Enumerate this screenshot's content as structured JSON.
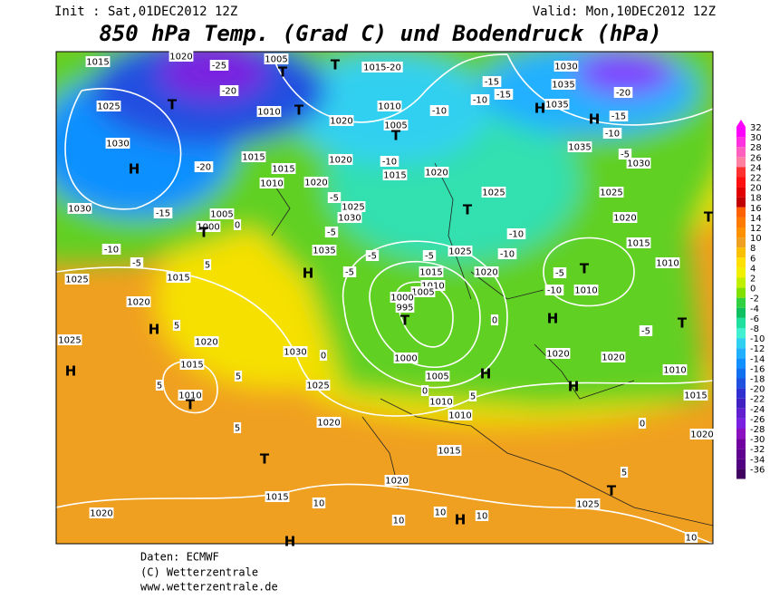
{
  "header": {
    "init": "Init : Sat,01DEC2012 12Z",
    "valid": "Valid: Mon,10DEC2012 12Z",
    "title": "850 hPa Temp. (Grad C) und Bodendruck (hPa)"
  },
  "colorbar": {
    "values": [
      32,
      30,
      28,
      26,
      24,
      22,
      20,
      18,
      16,
      14,
      12,
      10,
      8,
      6,
      4,
      2,
      0,
      -2,
      -4,
      -6,
      -8,
      -10,
      -12,
      -14,
      -16,
      -18,
      -20,
      -22,
      -24,
      -26,
      -28,
      -30,
      -32,
      -34,
      -36
    ],
    "colors": [
      "#ff00ff",
      "#ff30e0",
      "#ff60c0",
      "#ff80a0",
      "#ff3030",
      "#ff1010",
      "#e00000",
      "#c00000",
      "#ff6000",
      "#ff7a00",
      "#ff9000",
      "#f0a020",
      "#f8c000",
      "#ffe000",
      "#f0f000",
      "#c0f000",
      "#80e000",
      "#30d040",
      "#10c060",
      "#20e0a0",
      "#40f0d0",
      "#30d0f0",
      "#20b0ff",
      "#1090ff",
      "#1070f0",
      "#2050e0",
      "#3030d0",
      "#4020c0",
      "#6020d0",
      "#7a20e0",
      "#8a10c0",
      "#7000a0",
      "#600090",
      "#500080",
      "#400060"
    ]
  },
  "map": {
    "labels": [
      "1015",
      "1020",
      "-25",
      "1005",
      "T",
      "T",
      "1015-20",
      "1030",
      "-20",
      "1035",
      "-15",
      "-15",
      "-10",
      "1025",
      "T",
      "-20",
      "1010",
      "T",
      "1010",
      "-10",
      "H",
      "1035",
      "H",
      "-15",
      "-10",
      "1020",
      "1005",
      "T",
      "1030",
      "H",
      "-20",
      "1015",
      "1020",
      "-10",
      "1020",
      "1035",
      "-5",
      "1030",
      "1015",
      "1015",
      "1020",
      "1010",
      "-5",
      "1025",
      "1025",
      "T",
      "1030",
      "-15",
      "1005",
      "1025",
      "1030",
      "1020",
      "T",
      "1000",
      "T",
      "0",
      "-5",
      "-10",
      "1015",
      "-10",
      "-5",
      "1025",
      "-10",
      "-5",
      "1035",
      "-5",
      "T",
      "-5",
      "1010",
      "1025",
      "1015",
      "5",
      "H",
      "-5",
      "1015",
      "1020",
      "1010",
      "1005",
      "-10",
      "1010",
      "1020",
      "1000",
      "995",
      "T",
      "0",
      "H",
      "-5",
      "T",
      "H",
      "5",
      "1025",
      "1020",
      "1030",
      "0",
      "1000",
      "1020",
      "1020",
      "H",
      "1015",
      "5",
      "5",
      "1010",
      "T",
      "1025",
      "1005",
      "H",
      "1010",
      "H",
      "0",
      "1010",
      "5",
      "1015",
      "1020",
      "5",
      "1010",
      "0",
      "1020",
      "T",
      "1015",
      "5",
      "1020",
      "T",
      "1015",
      "10",
      "1025",
      "1020",
      "10",
      "10",
      "H",
      "10",
      "H",
      "10"
    ]
  },
  "footer": {
    "source": "Daten: ECMWF",
    "copyright": "(C) Wetterzentrale",
    "url": "www.wetterzentrale.de"
  }
}
